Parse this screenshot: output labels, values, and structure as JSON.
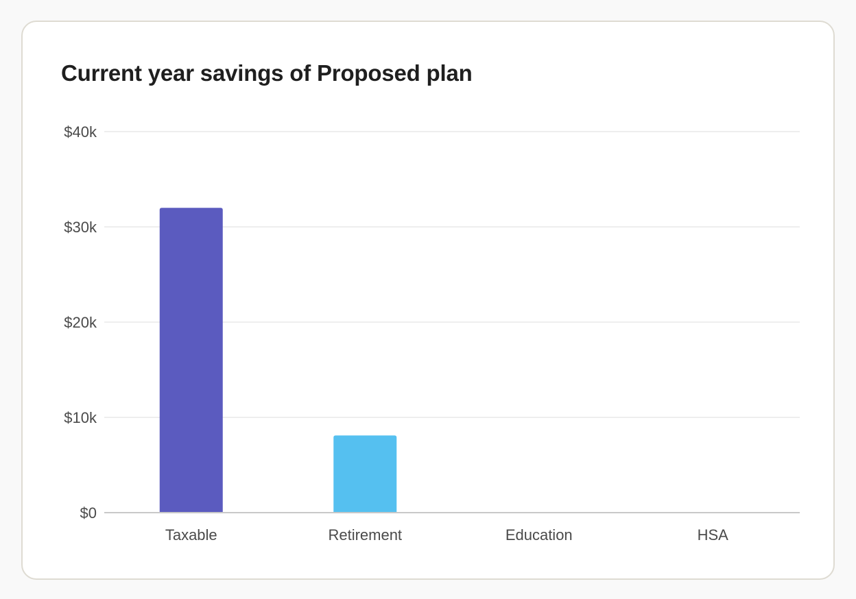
{
  "chart_data": {
    "type": "bar",
    "title": "Current year savings of Proposed plan",
    "categories": [
      "Taxable",
      "Retirement",
      "Education",
      "HSA"
    ],
    "values": [
      32000,
      8100,
      0,
      0
    ],
    "colors": [
      "#5b5bbf",
      "#55c0f0",
      "#5b5bbf",
      "#55c0f0"
    ],
    "ylim": [
      0,
      40000
    ],
    "yticks": [
      0,
      10000,
      20000,
      30000,
      40000
    ],
    "ytick_labels": [
      "$0",
      "$10k",
      "$20k",
      "$30k",
      "$40k"
    ],
    "grid": true,
    "gridline_color": "#e8e8e8",
    "baseline_color": "#c8c8c8"
  }
}
